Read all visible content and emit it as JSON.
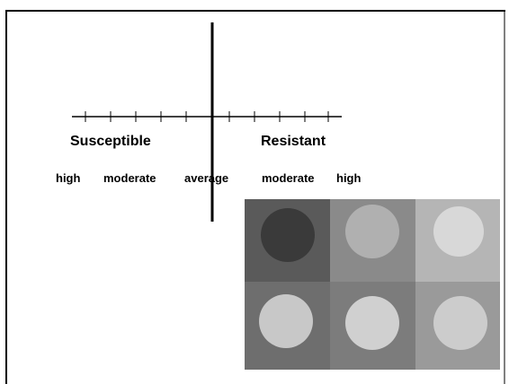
{
  "poles": {
    "left": "Susceptible",
    "right": "Resistant"
  },
  "scale": [
    "high",
    "moderate",
    "average",
    "moderate",
    "high"
  ]
}
